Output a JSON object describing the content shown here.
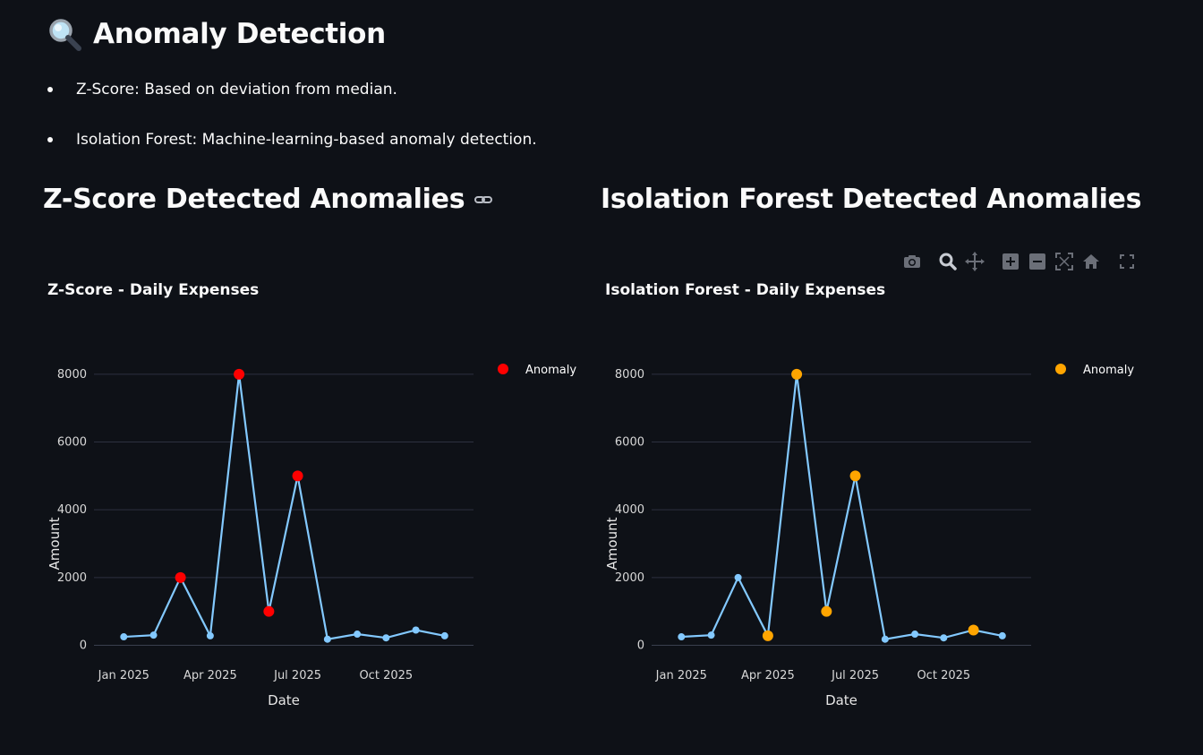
{
  "page": {
    "title": "Anomaly Detection",
    "title_icon": "magnifier-icon",
    "bullets": [
      "Z-Score: Based on deviation from median.",
      "Isolation Forest: Machine-learning-based anomaly detection."
    ]
  },
  "sections": [
    {
      "header": "Z-Score Detected Anomalies",
      "link_icon": "link-icon"
    },
    {
      "header": "Isolation Forest Detected Anomalies"
    }
  ],
  "toolbar": {
    "icons": [
      "camera-icon",
      "zoom-icon",
      "pan-icon",
      "zoom-in-icon",
      "zoom-out-icon",
      "autoscale-icon",
      "reset-axes-icon",
      "fullscreen-icon"
    ]
  },
  "colors": {
    "background": "#0e1117",
    "line": "#83c9ff",
    "zscore_anomaly": "#ff0000",
    "iforest_anomaly": "#ffa500"
  },
  "chart_data": [
    {
      "type": "line",
      "title": "Z-Score - Daily Expenses",
      "xlabel": "Date",
      "ylabel": "Amount",
      "x_ticks": [
        "Jan 2025",
        "Apr 2025",
        "Jul 2025",
        "Oct 2025"
      ],
      "y_ticks": [
        0,
        2000,
        4000,
        6000,
        8000
      ],
      "ylim": [
        -700,
        9000
      ],
      "x": [
        "2025-01-01",
        "2025-02-01",
        "2025-03-01",
        "2025-04-01",
        "2025-05-01",
        "2025-06-01",
        "2025-07-01",
        "2025-08-01",
        "2025-09-01",
        "2025-10-01",
        "2025-11-01",
        "2025-12-01"
      ],
      "values": [
        250,
        300,
        2000,
        280,
        8000,
        1000,
        5000,
        180,
        330,
        220,
        450,
        280
      ],
      "anomaly_indices": [
        2,
        4,
        5,
        6
      ],
      "legend": "Anomaly",
      "legend_position": "top-right",
      "grid": true
    },
    {
      "type": "line",
      "title": "Isolation Forest - Daily Expenses",
      "xlabel": "Date",
      "ylabel": "Amount",
      "x_ticks": [
        "Jan 2025",
        "Apr 2025",
        "Jul 2025",
        "Oct 2025"
      ],
      "y_ticks": [
        0,
        2000,
        4000,
        6000,
        8000
      ],
      "ylim": [
        -700,
        9000
      ],
      "x": [
        "2025-01-01",
        "2025-02-01",
        "2025-03-01",
        "2025-04-01",
        "2025-05-01",
        "2025-06-01",
        "2025-07-01",
        "2025-08-01",
        "2025-09-01",
        "2025-10-01",
        "2025-11-01",
        "2025-12-01"
      ],
      "values": [
        250,
        300,
        2000,
        280,
        8000,
        1000,
        5000,
        180,
        330,
        220,
        450,
        280
      ],
      "anomaly_indices": [
        3,
        4,
        5,
        6,
        10
      ],
      "legend": "Anomaly",
      "legend_position": "top-right",
      "grid": true
    }
  ]
}
